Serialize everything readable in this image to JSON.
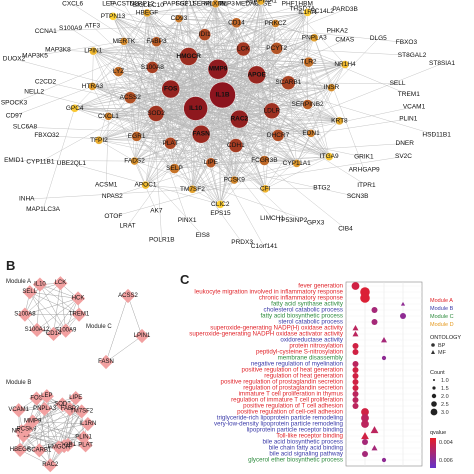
{
  "panel_labels": {
    "b": "B",
    "c": "C"
  },
  "network_a": {
    "genes": [
      "DNER",
      "SV2C",
      "GRIK1",
      "ARHGAP9",
      "ITPR1",
      "SCN3B",
      "BTG2",
      "CIB4",
      "GPX3",
      "TP53INP2",
      "LIMCH1",
      "C1orf141",
      "PRDX3",
      "EPS15",
      "EIS8",
      "PINX1",
      "POLR1B",
      "AK7",
      "LRAT",
      "OTOF",
      "NPAS2",
      "ACSM1",
      "MAP1LC3A",
      "INHA",
      "UBE2QL1",
      "CYP11B1",
      "EMID1",
      "FBXO32",
      "SLC6A8",
      "CD97",
      "SPOCK3",
      "NELL2",
      "C2CD2",
      "DUOX2",
      "MAP3K5",
      "MAP3K8",
      "CCNA1",
      "IL1B",
      "MMP9",
      "IL10",
      "LCK",
      "CDH1",
      "KRT8",
      "S100A8",
      "S100A9",
      "PTPN13",
      "ATF3",
      "CXCL6",
      "LEP",
      "TACSTD2",
      "CD93",
      "SIGLEC10",
      "NLRP12",
      "PAPSS2",
      "FGF11",
      "PLAT",
      "SERPINA5",
      "SERPINA1",
      "TFPI2",
      "BMP3",
      "MEDAG",
      "HPSE",
      "GPC4",
      "PHF1",
      "HBM",
      "THSD7A",
      "SEC14L2",
      "PARD3B",
      "PHKA2",
      "CMAS",
      "DLG5",
      "FBXO3",
      "ST8GAL2",
      "ST8SIA1",
      "RAC2",
      "FOS",
      "SOD2",
      "APOE",
      "HMGCR",
      "SCARB1",
      "FASN",
      "PCYT2",
      "DHCR7",
      "TM7SF2",
      "PNPLA3",
      "HTRA3",
      "CYP11A1",
      "FABP3",
      "ACSS2",
      "ITGA9",
      "FSTL3",
      "LDLR",
      "MERTK",
      "PCSK9",
      "APOC1",
      "SELL",
      "EGR1",
      "HBEGF",
      "CD14",
      "TREM1",
      "VCAM1",
      "IDI1",
      "LIPE",
      "PLIN1",
      "PRKCZ",
      "CLIC2",
      "SELP",
      "FCGR3B",
      "LPIN1",
      "CFI",
      "TLR2",
      "LYZ",
      "EDN1",
      "IL1RN",
      "CXCL1",
      "NR1H4",
      "FADS2",
      "MLXIPL",
      "HSD11B1"
    ],
    "nodes": [
      {
        "g": "IL1B",
        "r": 13
      },
      {
        "g": "IL10",
        "r": 12
      },
      {
        "g": "MMP9",
        "r": 10
      },
      {
        "g": "RAC2",
        "r": 9
      },
      {
        "g": "FOS",
        "r": 9
      },
      {
        "g": "APOE",
        "r": 9
      },
      {
        "g": "FASN",
        "r": 9
      },
      {
        "g": "HMGCR",
        "r": 9
      },
      {
        "g": "LDLR",
        "r": 8
      },
      {
        "g": "SOD2",
        "r": 8
      },
      {
        "g": "LCK",
        "r": 7
      },
      {
        "g": "CDH1",
        "r": 7
      },
      {
        "g": "S100A8",
        "r": 6
      },
      {
        "g": "SCARB1",
        "r": 7
      },
      {
        "g": "PLAT",
        "r": 6
      },
      {
        "g": "IDI1",
        "r": 6
      },
      {
        "g": "DHCR7",
        "r": 6
      },
      {
        "g": "ACSS2",
        "r": 6
      },
      {
        "g": "PCYT2",
        "r": 6
      },
      {
        "g": "LIPE",
        "r": 5
      },
      {
        "g": "FABP3",
        "r": 5
      },
      {
        "g": "SERPINB2",
        "r": 5
      },
      {
        "g": "EGR1",
        "r": 5
      },
      {
        "g": "CD14",
        "r": 5
      },
      {
        "g": "FCGR3B",
        "r": 5
      },
      {
        "g": "LYZ",
        "r": 5
      },
      {
        "g": "TLR2",
        "r": 5
      },
      {
        "g": "SELP",
        "r": 5
      },
      {
        "g": "CD93",
        "r": 4
      },
      {
        "g": "EDN1",
        "r": 4
      },
      {
        "g": "CXCL1",
        "r": 4
      },
      {
        "g": "PRKCZ",
        "r": 4
      },
      {
        "g": "PCSK9",
        "r": 4
      },
      {
        "g": "MERTK",
        "r": 4
      },
      {
        "g": "INSR",
        "r": 4
      },
      {
        "g": "FADS2",
        "r": 4
      },
      {
        "g": "MLXIPL",
        "r": 4
      },
      {
        "g": "CYP11A1",
        "r": 4
      },
      {
        "g": "HTRA3",
        "r": 4
      },
      {
        "g": "PNPLA3",
        "r": 4
      },
      {
        "g": "TM7SF2",
        "r": 4
      },
      {
        "g": "HBEGF",
        "r": 4
      },
      {
        "g": "KRT8",
        "r": 4
      },
      {
        "g": "TFPI2",
        "r": 4
      },
      {
        "g": "SERPINA1",
        "r": 4
      },
      {
        "g": "CFI",
        "r": 4
      },
      {
        "g": "LPIN1",
        "r": 4
      },
      {
        "g": "NR1H4",
        "r": 4
      },
      {
        "g": "APOC1",
        "r": 4
      },
      {
        "g": "FSTL3",
        "r": 4
      },
      {
        "g": "ITGA9",
        "r": 4
      },
      {
        "g": "GPC4",
        "r": 4
      },
      {
        "g": "IL1RN",
        "r": 4
      },
      {
        "g": "CLIC2",
        "r": 4
      },
      {
        "g": "PTPN13",
        "r": 4
      }
    ]
  },
  "modules": {
    "a": {
      "label": "Module A",
      "genes": [
        "TREM1",
        "S100A9",
        "CD14",
        "S100A12",
        "S100A8",
        "SELL",
        "IL10",
        "LCK",
        "HCK"
      ]
    },
    "b": {
      "label": "Module B",
      "genes": [
        "PLIN1",
        "PLAT",
        "CDH1",
        "APOE",
        "HMGCR",
        "RAC2",
        "SCARB1",
        "HBEGF",
        "IL1B",
        "NR1H4",
        "PCSK9",
        "MMP9",
        "VCAM1",
        "FOS",
        "PNPLA3",
        "LEP",
        "SOD2",
        "LIPE",
        "FABP3",
        "TM7SF2",
        "IL1RN"
      ]
    },
    "c": {
      "label": "Module C",
      "genes": [
        "ACSS2",
        "LPIN1",
        "FASN"
      ]
    }
  },
  "chart_data": {
    "type": "scatter",
    "terms": [
      {
        "t": "fever generation",
        "m": "A",
        "ont": "BP",
        "x": 0.025,
        "count": 3,
        "q": 0.001
      },
      {
        "t": "leukocyte migration involved in inflammatory response",
        "m": "A",
        "ont": "BP",
        "x": 0.05,
        "count": 4,
        "q": 0.0005
      },
      {
        "t": "chronic inflammatory response",
        "m": "A",
        "ont": "BP",
        "x": 0.05,
        "count": 4,
        "q": 0.0005
      },
      {
        "t": "fatty acid synthase activity",
        "m": "C",
        "ont": "MF",
        "x": 0.15,
        "count": 1,
        "q": 0.004
      },
      {
        "t": "cholesterol catabolic process",
        "m": "B",
        "ont": "BP",
        "x": 0.075,
        "count": 2,
        "q": 0.003
      },
      {
        "t": "fatty acid biosynthetic process",
        "m": "C",
        "ont": "BP",
        "x": 0.15,
        "count": 2,
        "q": 0.004
      },
      {
        "t": "sterol catabolic process",
        "m": "B",
        "ont": "BP",
        "x": 0.075,
        "count": 2,
        "q": 0.003
      },
      {
        "t": "superoxide-generating NADP(H) oxidase activity",
        "m": "A",
        "ont": "MF",
        "x": 0.025,
        "count": 2,
        "q": 0.002
      },
      {
        "t": "superoxide-generating NADPH oxidase activator activity",
        "m": "A",
        "ont": "MF",
        "x": 0.025,
        "count": 2,
        "q": 0.002
      },
      {
        "t": "oxidoreductase activity",
        "m": "B",
        "ont": "MF",
        "x": 0.1,
        "count": 2,
        "q": 0.003
      },
      {
        "t": "protein nitrosylation",
        "m": "A",
        "ont": "BP",
        "x": 0.025,
        "count": 2,
        "q": 0.001
      },
      {
        "t": "peptidyl-cysteine S-nitrosylation",
        "m": "A",
        "ont": "BP",
        "x": 0.025,
        "count": 2,
        "q": 0.001
      },
      {
        "t": "membrane disassembly",
        "m": "C",
        "ont": "BP",
        "x": 0.1,
        "count": 1,
        "q": 0.004
      },
      {
        "t": "negative regulation of myelination",
        "m": "B",
        "ont": "BP",
        "x": 0.025,
        "count": 2,
        "q": 0.002
      },
      {
        "t": "positive regulation of heat generation",
        "m": "A",
        "ont": "BP",
        "x": 0.025,
        "count": 2,
        "q": 0.001
      },
      {
        "t": "regulation of heat generation",
        "m": "A",
        "ont": "BP",
        "x": 0.025,
        "count": 2,
        "q": 0.001
      },
      {
        "t": "positive regulation of prostaglandin secretion",
        "m": "A",
        "ont": "BP",
        "x": 0.025,
        "count": 2,
        "q": 0.001
      },
      {
        "t": "regulation of prostaglandin secretion",
        "m": "A",
        "ont": "BP",
        "x": 0.025,
        "count": 2,
        "q": 0.001
      },
      {
        "t": "immature T cell proliferation in thymus",
        "m": "A",
        "ont": "BP",
        "x": 0.025,
        "count": 2,
        "q": 0.002
      },
      {
        "t": "regulation of immature T cell proliferation",
        "m": "A",
        "ont": "BP",
        "x": 0.025,
        "count": 2,
        "q": 0.002
      },
      {
        "t": "positive regulation of T cell adhesion",
        "m": "A",
        "ont": "BP",
        "x": 0.025,
        "count": 2,
        "q": 0.002
      },
      {
        "t": "positive regulation of cell-cell adhesion",
        "m": "A",
        "ont": "BP",
        "x": 0.05,
        "count": 3,
        "q": 0.001
      },
      {
        "t": "triglyceride-rich lipoprotein particle remodeling",
        "m": "B",
        "ont": "BP",
        "x": 0.05,
        "count": 3,
        "q": 0.002
      },
      {
        "t": "very-low-density lipoprotein particle remodeling",
        "m": "B",
        "ont": "BP",
        "x": 0.05,
        "count": 3,
        "q": 0.002
      },
      {
        "t": "lipoprotein particle receptor binding",
        "m": "B",
        "ont": "MF",
        "x": 0.075,
        "count": 3,
        "q": 0.002
      },
      {
        "t": "Toll-like receptor binding",
        "m": "A",
        "ont": "MF",
        "x": 0.05,
        "count": 3,
        "q": 0.001
      },
      {
        "t": "bile acid biosynthetic process",
        "m": "B",
        "ont": "BP",
        "x": 0.05,
        "count": 2,
        "q": 0.003
      },
      {
        "t": "bile chain fatty acid binding",
        "m": "B",
        "ont": "MF",
        "x": 0.075,
        "count": 2,
        "q": 0.003
      },
      {
        "t": "bile acid signaling pathway",
        "m": "B",
        "ont": "BP",
        "x": 0.05,
        "count": 2,
        "q": 0.003
      },
      {
        "t": "glycerol ether biosynthetic process",
        "m": "C",
        "ont": "BP",
        "x": 0.1,
        "count": 1,
        "q": 0.004
      }
    ],
    "module_colors": {
      "A": "#e0242a",
      "B": "#3a3aa8",
      "C": "#2e8b3e",
      "D": "#e59a1f"
    },
    "legend_modules": [
      "Module A",
      "Module B",
      "Module C",
      "Module D"
    ],
    "ontology_title": "ONTOLOGY",
    "ontology": [
      "BP",
      "MF"
    ],
    "count_title": "Count",
    "count_ticks": [
      "1.0",
      "1.5",
      "2.0",
      "2.5",
      "3.0"
    ],
    "qvalue_title": "qvalue",
    "qvalue_ticks": [
      "0.004",
      "0.006"
    ]
  }
}
